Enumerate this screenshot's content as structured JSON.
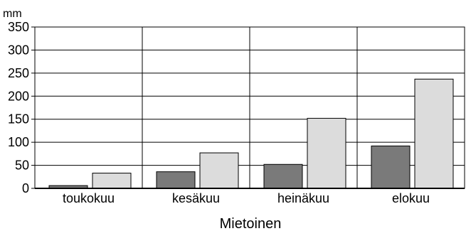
{
  "chart_data": {
    "type": "bar",
    "unit_label": "mm",
    "xlabel": "Mietoinen",
    "ylabel": "",
    "ylim": [
      0,
      350
    ],
    "yticks": [
      0,
      50,
      100,
      150,
      200,
      250,
      300,
      350
    ],
    "grid": true,
    "categories": [
      "toukokuu",
      "kesäkuu",
      "heinäkuu",
      "elokuu"
    ],
    "series": [
      {
        "values": [
          6,
          36,
          52,
          92
        ]
      },
      {
        "values": [
          33,
          77,
          152,
          237
        ]
      }
    ],
    "colors": [
      "#7a7a7a",
      "#dcdcdc"
    ]
  }
}
